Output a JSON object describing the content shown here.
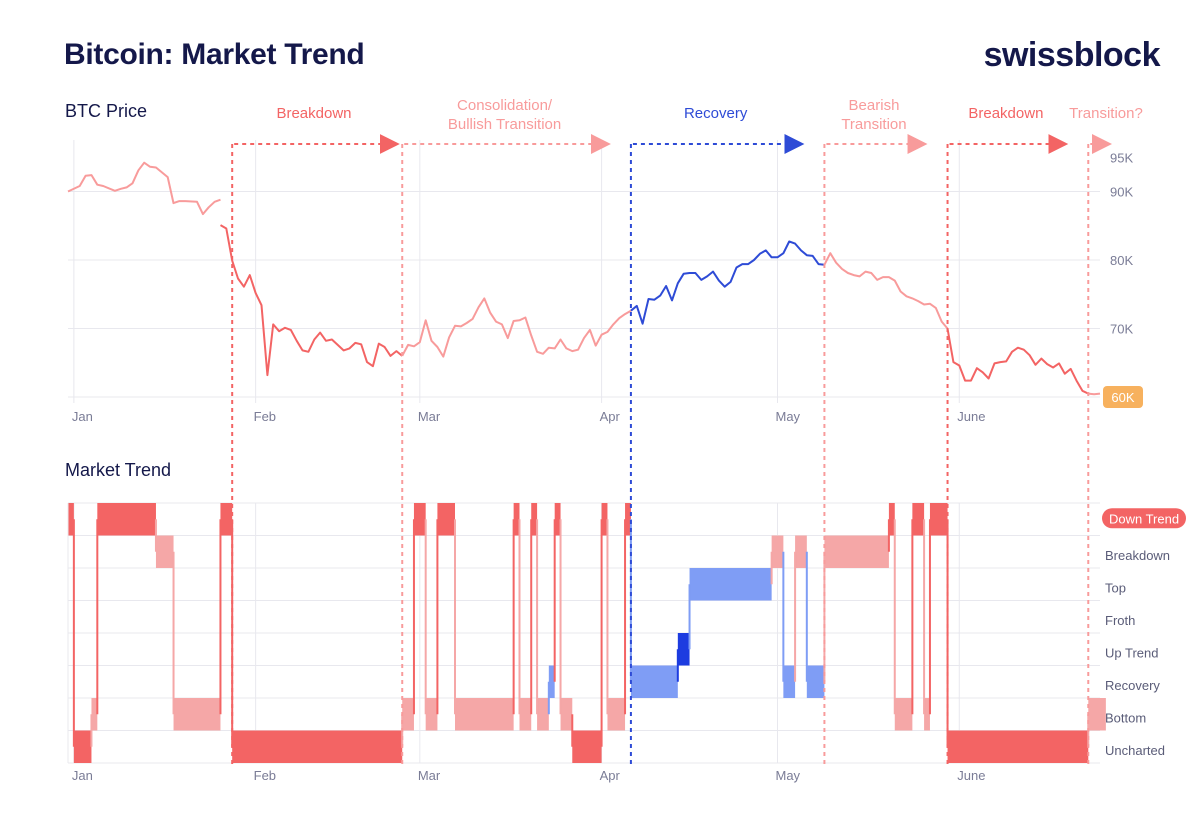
{
  "header": {
    "title": "Bitcoin: Market Trend",
    "logo": "swissblock"
  },
  "colors": {
    "red": "#f36464",
    "light_red": "#f89b9b",
    "pale_red": "#f5a7a7",
    "blue": "#2e4bd6",
    "light_blue": "#7f9df5",
    "dark_blue": "#1d3ce0",
    "orange_badge": "#f7b15e",
    "navy": "#14184a",
    "grid": "#e8e8ee"
  },
  "chart_data": [
    {
      "type": "line",
      "title": "BTC Price",
      "x_ticks": [
        "Jan",
        "Feb",
        "Mar",
        "Apr",
        "May",
        "June"
      ],
      "y_ticks": [
        "60K",
        "70K",
        "80K",
        "90K",
        "95K"
      ],
      "y_tick_values": [
        60000,
        70000,
        80000,
        90000,
        95000
      ],
      "highlighted_tick": "60K",
      "ylim": [
        59000,
        96000
      ],
      "xlim_days": [
        0,
        176
      ],
      "month_start_days": [
        1,
        32,
        60,
        91,
        121,
        152
      ],
      "grid": true,
      "phases": [
        {
          "label": "Breakdown",
          "start_day": 28,
          "end_day": 60,
          "color": "#f36464"
        },
        {
          "label": "Consolidation/\nBullish Transition",
          "start_day": 57,
          "end_day": 96,
          "color": "#f89b9b"
        },
        {
          "label": "Recovery",
          "start_day": 96,
          "end_day": 129,
          "color": "#2e4bd6"
        },
        {
          "label": "Bearish\nTransition",
          "start_day": 129,
          "end_day": 150,
          "color": "#f89b9b"
        },
        {
          "label": "Breakdown",
          "start_day": 150,
          "end_day": 174,
          "color": "#f36464"
        },
        {
          "label": "Transition?",
          "start_day": 174,
          "end_day": 180,
          "color": "#f89b9b"
        }
      ],
      "series": [
        {
          "color": "#f89b9b",
          "x": [
            0,
            2,
            3,
            4,
            5,
            6,
            8,
            9,
            10,
            11,
            12,
            13,
            14,
            15,
            17,
            18,
            19,
            20,
            22,
            23,
            24,
            25,
            26
          ],
          "y": [
            90000,
            90800,
            92300,
            92400,
            91000,
            90800,
            90100,
            90400,
            90600,
            91200,
            93100,
            94200,
            93600,
            93500,
            92100,
            88300,
            88600,
            88600,
            88500,
            86700,
            87700,
            88500,
            88800
          ]
        },
        {
          "color": "#f36464",
          "x": [
            26,
            27,
            28,
            29,
            30,
            31,
            32,
            33,
            34,
            35,
            36,
            37,
            38,
            39,
            40,
            41,
            42,
            43,
            44,
            45,
            46,
            47,
            48,
            49,
            50,
            51,
            52,
            53,
            54,
            55,
            56,
            57
          ],
          "y": [
            85100,
            84600,
            79900,
            77300,
            76100,
            77800,
            75200,
            73400,
            63200,
            70600,
            69600,
            70100,
            69800,
            68200,
            66800,
            66600,
            68400,
            69400,
            68200,
            68400,
            67600,
            66800,
            67100,
            67900,
            67700,
            65100,
            64500,
            67800,
            67300,
            66000,
            66700,
            66000
          ]
        },
        {
          "color": "#f89b9b",
          "x": [
            57,
            58,
            59,
            60,
            61,
            62,
            63,
            64,
            65,
            66,
            67,
            68,
            69,
            70,
            71,
            72,
            73,
            74,
            75,
            76,
            77,
            78,
            79,
            80,
            81,
            82,
            83,
            84,
            85,
            86,
            87,
            88,
            89,
            90,
            91,
            92,
            93,
            94,
            95,
            96
          ],
          "y": [
            66000,
            67600,
            67400,
            68000,
            71200,
            68200,
            67300,
            65900,
            68700,
            70400,
            70300,
            70800,
            71400,
            73100,
            74400,
            72300,
            71000,
            70600,
            68600,
            71100,
            71200,
            71600,
            69000,
            66600,
            66300,
            67200,
            67100,
            68400,
            67100,
            66700,
            66900,
            68600,
            69800,
            67500,
            69100,
            69500,
            70600,
            71500,
            72100,
            72600
          ]
        },
        {
          "color": "#2e4bd6",
          "x": [
            96,
            97,
            98,
            99,
            100,
            101,
            102,
            103,
            104,
            105,
            106,
            107,
            108,
            109,
            110,
            111,
            112,
            113,
            114,
            115,
            116,
            117,
            118,
            119,
            120,
            121,
            122,
            123,
            124,
            125,
            126,
            127,
            128,
            129
          ],
          "y": [
            72600,
            73300,
            70700,
            74300,
            74200,
            74800,
            76200,
            74100,
            76600,
            78000,
            78100,
            78100,
            77100,
            77600,
            78300,
            77000,
            76100,
            76800,
            78900,
            79400,
            79400,
            80000,
            80900,
            81400,
            80400,
            80400,
            81000,
            82700,
            82400,
            81400,
            80700,
            80600,
            79400,
            79300
          ]
        },
        {
          "color": "#f89b9b",
          "x": [
            129,
            130,
            131,
            132,
            133,
            134,
            135,
            136,
            137,
            138,
            139,
            140,
            141,
            142,
            143,
            144,
            145,
            146,
            147,
            148,
            149,
            150
          ],
          "y": [
            79300,
            81000,
            79600,
            78700,
            78100,
            77800,
            77600,
            78300,
            78100,
            77100,
            77500,
            77500,
            77000,
            75400,
            74700,
            74400,
            74000,
            73500,
            73600,
            73000,
            71000,
            70000
          ]
        },
        {
          "color": "#f36464",
          "x": [
            150,
            151,
            152,
            153,
            154,
            155,
            156,
            157,
            158,
            159,
            160,
            161,
            162,
            163,
            164,
            165,
            166,
            167,
            168,
            169,
            170,
            171,
            172,
            173,
            174
          ],
          "y": [
            70000,
            65100,
            64600,
            62400,
            62400,
            64200,
            63600,
            62700,
            64900,
            65100,
            65200,
            66600,
            67200,
            66900,
            66100,
            64700,
            65600,
            64800,
            64300,
            64900,
            63400,
            64100,
            62400,
            60900,
            60500
          ]
        },
        {
          "color": "#f89b9b",
          "x": [
            174,
            175,
            176
          ],
          "y": [
            60500,
            60400,
            60500
          ]
        }
      ]
    },
    {
      "type": "area",
      "title": "Market Trend",
      "x_ticks": [
        "Jan",
        "Feb",
        "Mar",
        "Apr",
        "May",
        "June"
      ],
      "levels": [
        "Down Trend",
        "Breakdown",
        "Top",
        "Froth",
        "Up Trend",
        "Recovery",
        "Bottom",
        "Uncharted"
      ],
      "highlighted_level": "Down Trend",
      "categories_colors": {
        "Down Trend": "#f36464",
        "Breakdown": "#f5a7a7",
        "Top": "#7f9df5",
        "Froth": "#7f9df5",
        "Up Trend": "#1d3ce0",
        "Recovery": "#7f9df5",
        "Bottom": "#f5a7a7",
        "Uncharted": "#f36464"
      },
      "segments": [
        {
          "start_day": 0,
          "end_day": 1,
          "level": "Down Trend",
          "color": "#f36464"
        },
        {
          "start_day": 1,
          "end_day": 4,
          "level": "Uncharted",
          "color": "#f36464"
        },
        {
          "start_day": 4,
          "end_day": 5,
          "level": "Bottom",
          "color": "#f5a7a7"
        },
        {
          "start_day": 5,
          "end_day": 15,
          "level": "Down Trend",
          "color": "#f36464"
        },
        {
          "start_day": 15,
          "end_day": 18,
          "level": "Breakdown",
          "color": "#f5a7a7"
        },
        {
          "start_day": 18,
          "end_day": 26,
          "level": "Bottom",
          "color": "#f5a7a7"
        },
        {
          "start_day": 26,
          "end_day": 28,
          "level": "Down Trend",
          "color": "#f36464"
        },
        {
          "start_day": 28,
          "end_day": 57,
          "level": "Uncharted",
          "color": "#f36464"
        },
        {
          "start_day": 57,
          "end_day": 59,
          "level": "Bottom",
          "color": "#f5a7a7"
        },
        {
          "start_day": 59,
          "end_day": 61,
          "level": "Down Trend",
          "color": "#f36464"
        },
        {
          "start_day": 61,
          "end_day": 63,
          "level": "Bottom",
          "color": "#f5a7a7"
        },
        {
          "start_day": 63,
          "end_day": 66,
          "level": "Down Trend",
          "color": "#f36464"
        },
        {
          "start_day": 66,
          "end_day": 76,
          "level": "Bottom",
          "color": "#f5a7a7"
        },
        {
          "start_day": 76,
          "end_day": 77,
          "level": "Down Trend",
          "color": "#f36464"
        },
        {
          "start_day": 77,
          "end_day": 79,
          "level": "Bottom",
          "color": "#f5a7a7"
        },
        {
          "start_day": 79,
          "end_day": 80,
          "level": "Down Trend",
          "color": "#f36464"
        },
        {
          "start_day": 80,
          "end_day": 82,
          "level": "Bottom",
          "color": "#f5a7a7"
        },
        {
          "start_day": 82,
          "end_day": 83,
          "level": "Recovery",
          "color": "#7f9df5"
        },
        {
          "start_day": 83,
          "end_day": 84,
          "level": "Down Trend",
          "color": "#f36464"
        },
        {
          "start_day": 84,
          "end_day": 86,
          "level": "Bottom",
          "color": "#f5a7a7"
        },
        {
          "start_day": 86,
          "end_day": 91,
          "level": "Uncharted",
          "color": "#f36464"
        },
        {
          "start_day": 91,
          "end_day": 92,
          "level": "Down Trend",
          "color": "#f36464"
        },
        {
          "start_day": 92,
          "end_day": 95,
          "level": "Bottom",
          "color": "#f5a7a7"
        },
        {
          "start_day": 95,
          "end_day": 96,
          "level": "Down Trend",
          "color": "#f36464"
        },
        {
          "start_day": 96,
          "end_day": 104,
          "level": "Recovery",
          "color": "#7f9df5"
        },
        {
          "start_day": 104,
          "end_day": 106,
          "level": "Up Trend",
          "color": "#1d3ce0"
        },
        {
          "start_day": 106,
          "end_day": 120,
          "level": "Top",
          "color": "#7f9df5"
        },
        {
          "start_day": 120,
          "end_day": 122,
          "level": "Breakdown",
          "color": "#f5a7a7"
        },
        {
          "start_day": 122,
          "end_day": 124,
          "level": "Recovery",
          "color": "#7f9df5"
        },
        {
          "start_day": 124,
          "end_day": 126,
          "level": "Breakdown",
          "color": "#f5a7a7"
        },
        {
          "start_day": 126,
          "end_day": 129,
          "level": "Recovery",
          "color": "#7f9df5"
        },
        {
          "start_day": 129,
          "end_day": 140,
          "level": "Breakdown",
          "color": "#f5a7a7"
        },
        {
          "start_day": 140,
          "end_day": 141,
          "level": "Down Trend",
          "color": "#f36464"
        },
        {
          "start_day": 141,
          "end_day": 144,
          "level": "Bottom",
          "color": "#f5a7a7"
        },
        {
          "start_day": 144,
          "end_day": 146,
          "level": "Down Trend",
          "color": "#f36464"
        },
        {
          "start_day": 146,
          "end_day": 147,
          "level": "Bottom",
          "color": "#f5a7a7"
        },
        {
          "start_day": 147,
          "end_day": 150,
          "level": "Down Trend",
          "color": "#f36464"
        },
        {
          "start_day": 150,
          "end_day": 174,
          "level": "Uncharted",
          "color": "#f36464"
        },
        {
          "start_day": 174,
          "end_day": 177,
          "level": "Bottom",
          "color": "#f5a7a7"
        }
      ]
    }
  ]
}
